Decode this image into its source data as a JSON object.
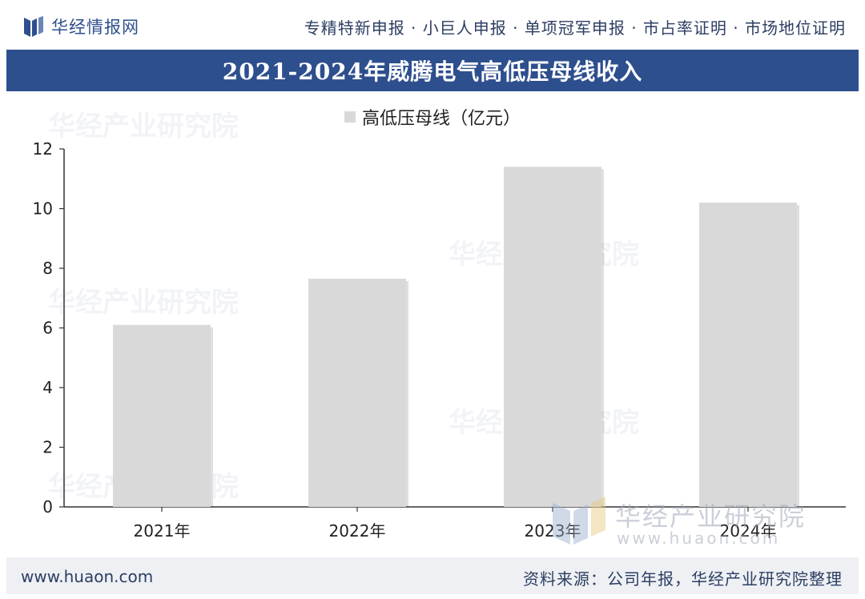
{
  "header": {
    "logo_text": "华经情报网",
    "services": "专精特新申报 · 小巨人申报 · 单项冠军申报 · 市占率证明 · 市场地位证明",
    "brand_color": "#2e4f8e"
  },
  "chart_data": {
    "type": "bar",
    "title": "2021-2024年威腾电气高低压母线收入",
    "categories": [
      "2021年",
      "2022年",
      "2023年",
      "2024年"
    ],
    "series": [
      {
        "name": "高低压母线（亿元）",
        "values": [
          6.1,
          7.65,
          11.4,
          10.2
        ],
        "color": "#d9d9d9"
      }
    ],
    "ylim": [
      0,
      12
    ],
    "yticks": [
      "0",
      "2",
      "4",
      "6",
      "8",
      "10",
      "12"
    ],
    "xlabel": "",
    "ylabel": "",
    "grid": false,
    "legend": "top-center"
  },
  "watermark": {
    "brand": "华经产业研究院",
    "url": "www.huaon.com"
  },
  "footer": {
    "site": "www.huaon.com",
    "source": "资料来源：公司年报，华经产业研究院整理"
  }
}
